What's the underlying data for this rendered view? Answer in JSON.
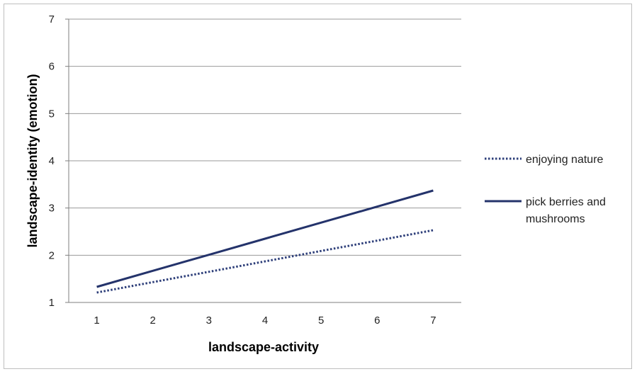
{
  "chart_data": {
    "type": "line",
    "title": "",
    "xlabel": "landscape-activity",
    "ylabel": "landscape-identity (emotion)",
    "x": [
      1,
      2,
      3,
      4,
      5,
      6,
      7
    ],
    "xlim": [
      0.5,
      7.5
    ],
    "ylim": [
      1,
      7
    ],
    "yticks": [
      1,
      2,
      3,
      4,
      5,
      6,
      7
    ],
    "xticks": [
      1,
      2,
      3,
      4,
      5,
      6,
      7
    ],
    "grid": "horizontal",
    "legend_placement": "right",
    "series": [
      {
        "name": "enjoying nature",
        "style": "dotted",
        "color": "#2e3f7a",
        "values": [
          1.21,
          1.43,
          1.65,
          1.87,
          2.09,
          2.31,
          2.53
        ]
      },
      {
        "name": "pick berries and mushrooms",
        "legend_lines": [
          "pick berries and",
          "mushrooms"
        ],
        "style": "solid",
        "color": "#24336b",
        "values": [
          1.33,
          1.67,
          2.01,
          2.35,
          2.69,
          3.03,
          3.37
        ]
      }
    ],
    "gridline_color": "#9a9a9a"
  }
}
